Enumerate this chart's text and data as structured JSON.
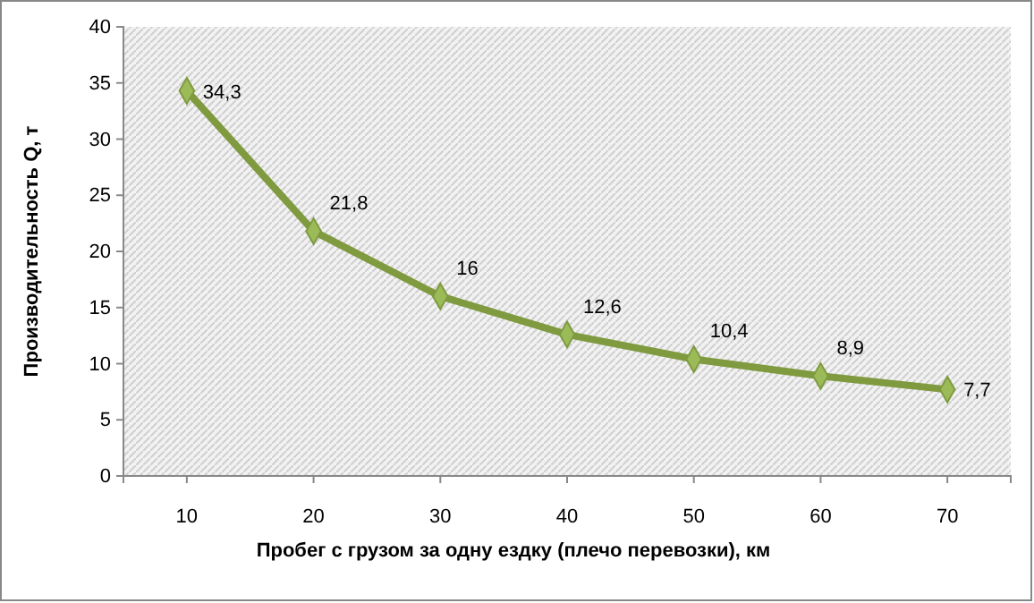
{
  "chart_data": {
    "type": "line",
    "xlabel": "Пробег с грузом за одну ездку (плечо перевозки), км",
    "ylabel": "Производительность Q, т",
    "categories": [
      "10",
      "20",
      "30",
      "40",
      "50",
      "60",
      "70"
    ],
    "series": [
      {
        "color": "#7f9a3f",
        "values": [
          34.3,
          21.8,
          16,
          12.6,
          10.4,
          8.9,
          7.7
        ],
        "value_labels": [
          "34,3",
          "21,8",
          "16",
          "12,6",
          "10,4",
          "8,9",
          "7,7"
        ]
      }
    ],
    "ylim": [
      0,
      40
    ],
    "yticks": [
      0,
      5,
      10,
      15,
      20,
      25,
      30,
      35,
      40
    ],
    "grid": false,
    "marker": "diamond",
    "line_style": "solid"
  }
}
